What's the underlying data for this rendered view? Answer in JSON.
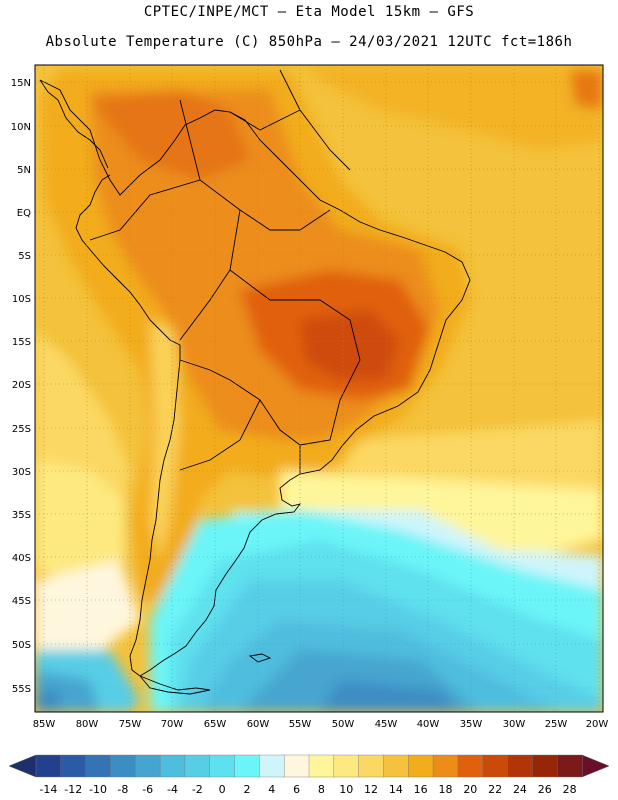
{
  "header": {
    "line1": "CPTEC/INPE/MCT –  Eta Model 15km – GFS",
    "line2": "Absolute Temperature (C) 850hPa – 24/03/2021 12UTC fct=186h"
  },
  "map": {
    "lat_labels": [
      "15N",
      "10N",
      "5N",
      "EQ",
      "5S",
      "10S",
      "15S",
      "20S",
      "25S",
      "30S",
      "35S",
      "40S",
      "45S",
      "50S",
      "55S"
    ],
    "lon_labels": [
      "85W",
      "80W",
      "75W",
      "70W",
      "65W",
      "60W",
      "55W",
      "50W",
      "45W",
      "40W",
      "35W",
      "30W",
      "25W",
      "20W"
    ]
  },
  "colorbar": {
    "colors": [
      "#23408f",
      "#2b5aa7",
      "#3474b4",
      "#3c8dc3",
      "#46a5cf",
      "#4fbdde",
      "#58cde6",
      "#5ee1ee",
      "#6cf5f8",
      "#cff5fb",
      "#fff6de",
      "#fff59a",
      "#fde980",
      "#fbd864",
      "#f4c23c",
      "#f2ac1c",
      "#ec8d1a",
      "#e0600e",
      "#cc4a09",
      "#b23507",
      "#962605",
      "#7a1a1a"
    ],
    "labels": [
      "-14",
      "-12",
      "-10",
      "-8",
      "-6",
      "-4",
      "-2",
      "0",
      "2",
      "4",
      "6",
      "8",
      "10",
      "12",
      "14",
      "16",
      "18",
      "20",
      "22",
      "24",
      "26",
      "28"
    ]
  }
}
